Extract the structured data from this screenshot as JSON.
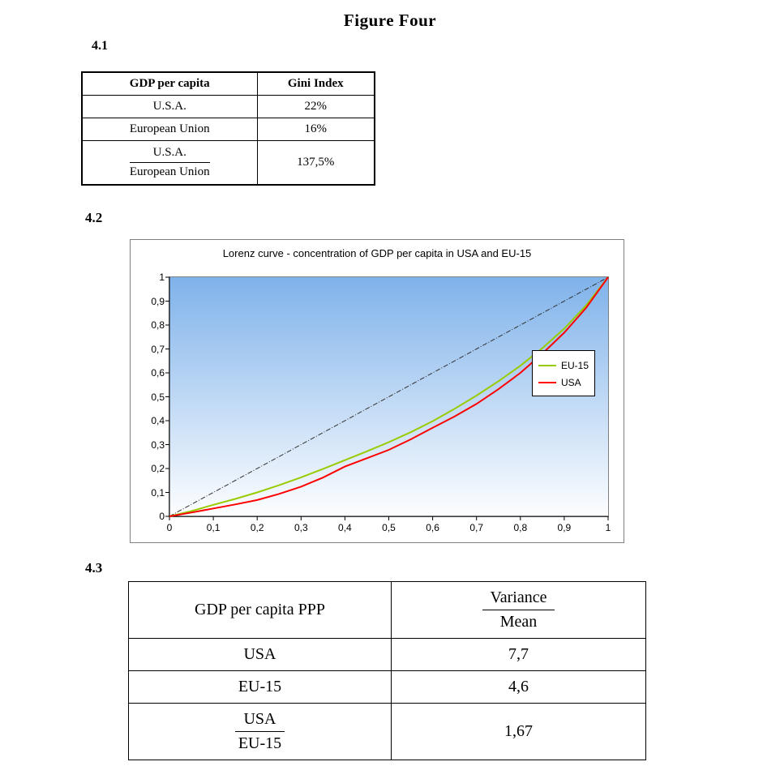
{
  "page": {
    "title": "Figure Four"
  },
  "sections": {
    "s41": {
      "label": "4.1",
      "table": {
        "headers": [
          "GDP per capita",
          "Gini Index"
        ],
        "rows": [
          {
            "label": "U.S.A.",
            "value": "22%"
          },
          {
            "label": "European Union",
            "value": "16%"
          }
        ],
        "ratio_row": {
          "numerator": "U.S.A.",
          "denominator": "European Union",
          "value": "137,5%"
        }
      }
    },
    "s42": {
      "label": "4.2"
    },
    "s43": {
      "label": "4.3",
      "table": {
        "header": {
          "label": "GDP per capita PPP",
          "numerator": "Variance",
          "denominator": "Mean"
        },
        "rows": [
          {
            "label": "USA",
            "value": "7,7"
          },
          {
            "label": "EU-15",
            "value": "4,6"
          }
        ],
        "ratio_row": {
          "numerator": "USA",
          "denominator": "EU-15",
          "value": "1,67"
        }
      }
    }
  },
  "chart_data": {
    "type": "line",
    "title": "Lorenz curve - concentration of GDP per capita in USA and EU-15",
    "xlabel": "",
    "ylabel": "",
    "xlim": [
      0,
      1
    ],
    "ylim": [
      0,
      1
    ],
    "grid": false,
    "legend_position": "middle-right",
    "plot_bg_top": "#7FB2EA",
    "plot_bg_bottom": "#FDFEFF",
    "x_ticks": [
      "0",
      "0,1",
      "0,2",
      "0,3",
      "0,4",
      "0,5",
      "0,6",
      "0,7",
      "0,8",
      "0,9",
      "1"
    ],
    "y_ticks": [
      "1",
      "0,9",
      "0,8",
      "0,7",
      "0,6",
      "0,5",
      "0,4",
      "0,3",
      "0,2",
      "0,1",
      "0"
    ],
    "series": [
      {
        "name": "equality-diagonal",
        "color": "#303030",
        "width": 1,
        "dash": "6 2 1 2",
        "in_legend": false,
        "x": [
          0,
          1
        ],
        "values": [
          0,
          1
        ]
      },
      {
        "name": "EU-15",
        "color": "#99CC00",
        "width": 2,
        "in_legend": true,
        "x": [
          0,
          0.05,
          0.1,
          0.15,
          0.2,
          0.25,
          0.3,
          0.35,
          0.4,
          0.45,
          0.5,
          0.55,
          0.6,
          0.65,
          0.7,
          0.75,
          0.8,
          0.85,
          0.9,
          0.95,
          1
        ],
        "values": [
          0,
          0.022,
          0.048,
          0.073,
          0.1,
          0.13,
          0.163,
          0.198,
          0.235,
          0.272,
          0.31,
          0.352,
          0.398,
          0.45,
          0.505,
          0.565,
          0.63,
          0.703,
          0.785,
          0.882,
          1
        ]
      },
      {
        "name": "USA",
        "color": "#FF0000",
        "width": 2,
        "in_legend": true,
        "x": [
          0,
          0.05,
          0.1,
          0.15,
          0.2,
          0.25,
          0.3,
          0.35,
          0.4,
          0.45,
          0.5,
          0.55,
          0.6,
          0.65,
          0.7,
          0.75,
          0.8,
          0.85,
          0.9,
          0.95,
          1
        ],
        "values": [
          0,
          0.016,
          0.033,
          0.05,
          0.068,
          0.094,
          0.124,
          0.162,
          0.208,
          0.243,
          0.278,
          0.322,
          0.37,
          0.418,
          0.47,
          0.532,
          0.6,
          0.68,
          0.768,
          0.872,
          1
        ]
      }
    ]
  }
}
